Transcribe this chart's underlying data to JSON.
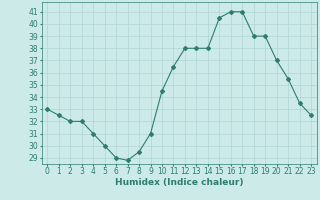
{
  "x": [
    0,
    1,
    2,
    3,
    4,
    5,
    6,
    7,
    8,
    9,
    10,
    11,
    12,
    13,
    14,
    15,
    16,
    17,
    18,
    19,
    20,
    21,
    22,
    23
  ],
  "y": [
    33,
    32.5,
    32,
    32,
    31,
    30,
    29,
    28.8,
    29.5,
    31,
    34.5,
    36.5,
    38,
    38,
    38,
    40.5,
    41,
    41,
    39,
    39,
    37,
    35.5,
    33.5,
    32.5
  ],
  "line_color": "#2e7d6e",
  "marker": "D",
  "marker_size": 2.0,
  "bg_color": "#cceae8",
  "grid_color": "#b0d4d2",
  "xlabel": "Humidex (Indice chaleur)",
  "ylabel_ticks": [
    29,
    30,
    31,
    32,
    33,
    34,
    35,
    36,
    37,
    38,
    39,
    40,
    41
  ],
  "ylim": [
    28.5,
    41.8
  ],
  "xlim": [
    -0.5,
    23.5
  ],
  "tick_fontsize": 5.5,
  "xlabel_fontsize": 6.5
}
